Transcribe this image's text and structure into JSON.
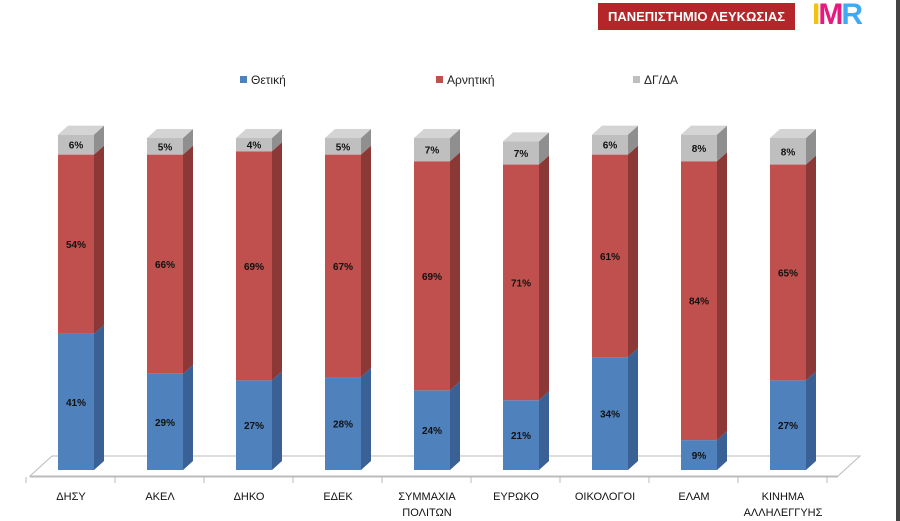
{
  "header": {
    "banner": "ΠΑΝΕΠΙΣΤΗΜΙΟ ΛΕΥΚΩΣΙΑΣ",
    "logo": "IMR"
  },
  "colors": {
    "positive": "#4f81bd",
    "negative": "#c0504d",
    "dk": "#bfbfbf"
  },
  "chart_data": {
    "type": "bar",
    "stacked": true,
    "title": "",
    "categories": [
      [
        "ΔΗΣΥ"
      ],
      [
        "ΑΚΕΛ"
      ],
      [
        "ΔΗΚΟ"
      ],
      [
        "ΕΔΕΚ"
      ],
      [
        "ΣΥΜΜΑΧΙΑ",
        "ΠΟΛΙΤΩΝ"
      ],
      [
        "ΕΥΡΩΚΟ"
      ],
      [
        "ΟΙΚΟΛΟΓΟΙ"
      ],
      [
        "ΕΛΑΜ"
      ],
      [
        "ΚΙΝΗΜΑ",
        "ΑΛΛΗΛΕΓΓΥΗΣ"
      ]
    ],
    "series": [
      {
        "name": "Θετική",
        "values": [
          41,
          29,
          27,
          28,
          24,
          21,
          34,
          9,
          27
        ]
      },
      {
        "name": "Αρνητική",
        "values": [
          54,
          66,
          69,
          67,
          69,
          71,
          61,
          84,
          65
        ]
      },
      {
        "name": "ΔΓ/ΔΑ",
        "values": [
          6,
          5,
          4,
          5,
          7,
          7,
          6,
          8,
          8
        ]
      }
    ],
    "legend": "top",
    "ylim": [
      0,
      100
    ]
  }
}
